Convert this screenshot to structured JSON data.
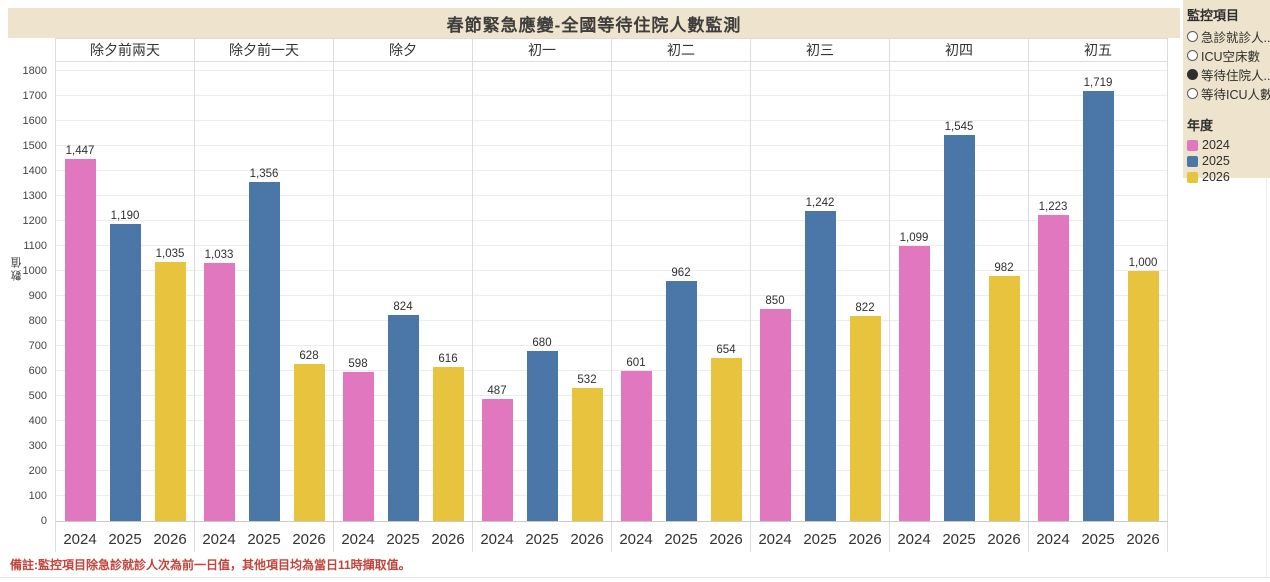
{
  "title": "春節緊急應變-全國等待住院人數監測",
  "sidebar": {
    "monitor_title": "監控項目",
    "options": [
      {
        "label": "急診就診人..",
        "selected": false
      },
      {
        "label": "ICU空床數",
        "selected": false
      },
      {
        "label": "等待住院人..",
        "selected": true
      },
      {
        "label": "等待ICU人數",
        "selected": false
      }
    ],
    "legend_title": "年度",
    "legend": [
      {
        "label": "2024",
        "color": "#e077bf"
      },
      {
        "label": "2025",
        "color": "#4a76a8"
      },
      {
        "label": "2026",
        "color": "#e8c33e"
      }
    ]
  },
  "note": "備註:監控項目除急診就診人次為前一日值，其他項目均為當日11時擷取值。",
  "colors": {
    "panel_beige": "#eee3cc",
    "note_red": "#c0453c",
    "series_2024": "#e077bf",
    "series_2025": "#4a76a8",
    "series_2026": "#e8c33e"
  },
  "chart_data": {
    "type": "bar",
    "title": "春節緊急應變-全國等待住院人數監測",
    "xlabel": "",
    "ylabel": "數值",
    "ylim": [
      0,
      1800
    ],
    "ytick_step": 100,
    "grid": true,
    "legend_position": "right",
    "categories": [
      "除夕前兩天",
      "除夕前一天",
      "除夕",
      "初一",
      "初二",
      "初三",
      "初四",
      "初五"
    ],
    "x_sublabels": [
      "2024",
      "2025",
      "2026"
    ],
    "series": [
      {
        "name": "2024",
        "color": "#e077bf",
        "values": [
          1447,
          1033,
          598,
          487,
          601,
          850,
          1099,
          1223
        ]
      },
      {
        "name": "2025",
        "color": "#4a76a8",
        "values": [
          1190,
          1356,
          824,
          680,
          962,
          1242,
          1545,
          1719
        ]
      },
      {
        "name": "2026",
        "color": "#e8c33e",
        "values": [
          1035,
          628,
          616,
          532,
          654,
          822,
          982,
          1000
        ]
      }
    ]
  }
}
